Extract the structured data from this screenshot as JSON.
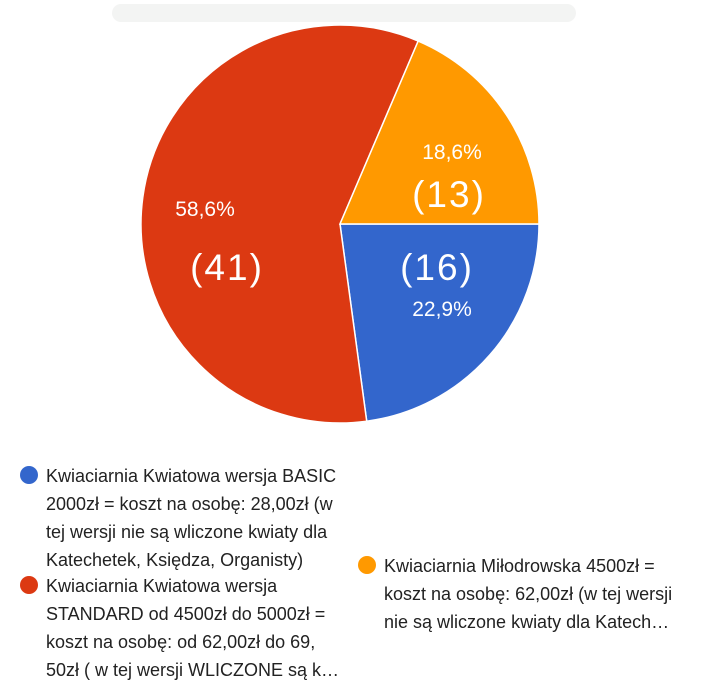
{
  "chart_data": {
    "type": "pie",
    "slices": [
      {
        "label": "Kwiaciarnia Kwiatowa wersja BASIC 2000zł = koszt na osobę: 28,00zł (w tej wersji nie są wliczone kwiaty dla Katechetek, Księdza, Organisty)",
        "value": 16,
        "percent_label": "22,9%",
        "count_label": "(16)",
        "color": "#3366cc"
      },
      {
        "label": "Kwiaciarnia Kwiatowa wersja STANDARD od 4500zł do 5000zł = koszt na osobę: od 62,00zł do 69, 50zł ( w tej wersji WLICZONE są k…",
        "value": 41,
        "percent_label": "58,6%",
        "count_label": "(41)",
        "color": "#dc3912"
      },
      {
        "label": "Kwiaciarnia Miłodrowska 4500zł = koszt na osobę: 62,00zł (w tej wersji nie są wliczone kwiaty dla Katech…",
        "value": 13,
        "percent_label": "18,6%",
        "count_label": "(13)",
        "color": "#ff9900"
      }
    ]
  },
  "legend": {
    "items": [
      {
        "lines": "Kwiaciarnia Kwiatowa wersja BASIC\n2000zł = koszt na osobę: 28,00zł (w\ntej wersji nie są wliczone kwiaty dla\nKatechetek, Księdza, Organisty)",
        "color": "#3366cc"
      },
      {
        "lines": "Kwiaciarnia Kwiatowa wersja\nSTANDARD od 4500zł do 5000zł =\nkoszt na osobę: od 62,00zł do 69,\n50zł ( w tej wersji WLICZONE są k…",
        "color": "#dc3912"
      },
      {
        "lines": "Kwiaciarnia Miłodrowska 4500zł =\nkoszt na osobę: 62,00zł (w tej wersji\nnie są wliczone kwiaty dla Katech…",
        "color": "#ff9900"
      }
    ]
  }
}
